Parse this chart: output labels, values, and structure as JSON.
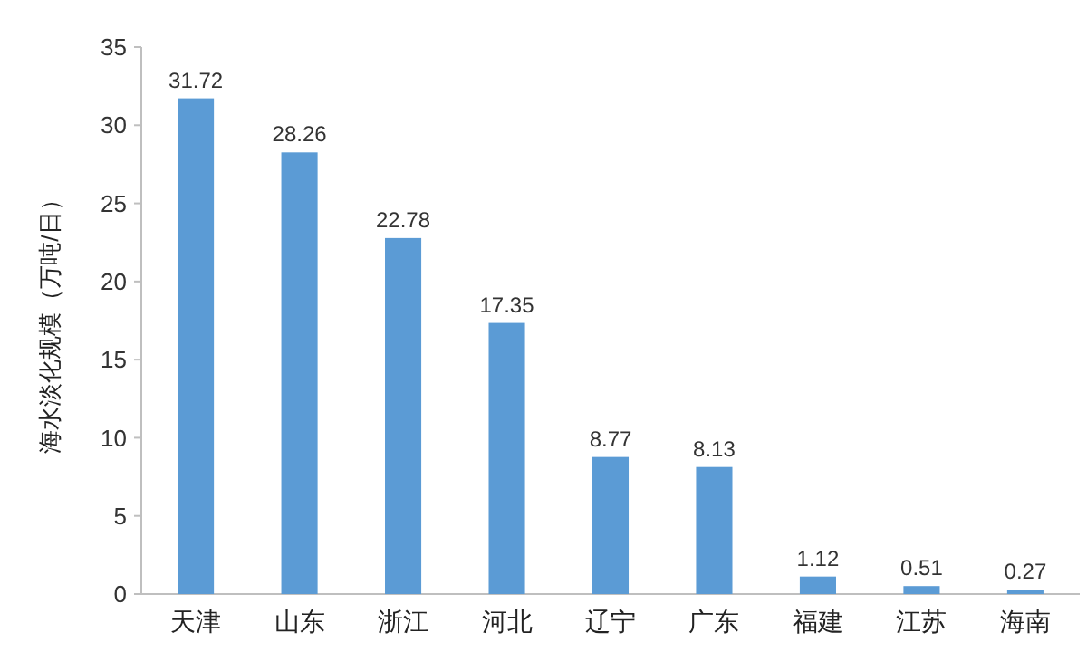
{
  "chart_data": {
    "type": "bar",
    "ylabel": "海水淡化规模（万吨/日）",
    "categories": [
      "天津",
      "山东",
      "浙江",
      "河北",
      "辽宁",
      "广东",
      "福建",
      "江苏",
      "海南"
    ],
    "values": [
      31.72,
      28.26,
      22.78,
      17.35,
      8.77,
      8.13,
      1.12,
      0.51,
      0.27
    ],
    "color": "#5b9bd5",
    "ylim": [
      0,
      35
    ],
    "yticks": [
      0,
      5,
      10,
      15,
      20,
      25,
      30,
      35
    ],
    "data_labels": true,
    "grid": false
  }
}
